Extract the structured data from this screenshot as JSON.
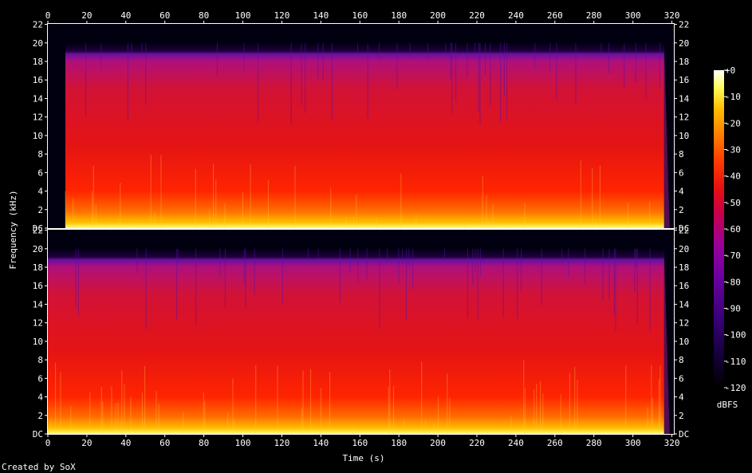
{
  "chart_data": {
    "type": "heatmap",
    "title": "",
    "xlabel": "Time (s)",
    "ylabel": "Frequency (kHz)",
    "colorbar_label": "dBFS",
    "footer": "Created by SoX",
    "x_ticks": [
      "0",
      "20",
      "40",
      "60",
      "80",
      "100",
      "120",
      "140",
      "160",
      "180",
      "200",
      "220",
      "240",
      "260",
      "280",
      "300",
      "320"
    ],
    "x_range": [
      0,
      321
    ],
    "y_ticks": [
      "DC",
      "2",
      "4",
      "6",
      "8",
      "10",
      "12",
      "14",
      "16",
      "18",
      "20",
      "22"
    ],
    "y_range_khz": [
      0,
      22.05
    ],
    "colorbar_ticks": [
      "+0",
      "-10",
      "-20",
      "-30",
      "-40",
      "-50",
      "-60",
      "-70",
      "-80",
      "-90",
      "-100",
      "-110",
      "-120"
    ],
    "colorbar_range": [
      -120,
      0
    ],
    "channels": [
      {
        "name": "",
        "audio_start_s": 9,
        "audio_end_s": 316,
        "cutoff_khz": 20
      },
      {
        "name": "",
        "audio_start_s": 0,
        "audio_end_s": 316,
        "cutoff_khz": 20
      }
    ],
    "palette": [
      "#000000",
      "#14003a",
      "#3a0078",
      "#6a00a0",
      "#9a009a",
      "#c8004a",
      "#e81010",
      "#ff4000",
      "#ff8000",
      "#ffc000",
      "#ffff60",
      "#ffffff"
    ]
  }
}
